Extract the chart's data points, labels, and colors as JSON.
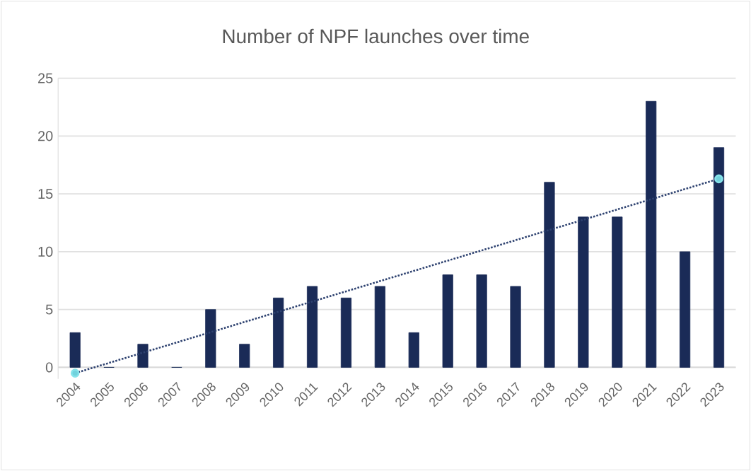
{
  "chart_data": {
    "type": "bar",
    "title": "Number of NPF launches over time",
    "categories": [
      "2004",
      "2005",
      "2006",
      "2007",
      "2008",
      "2009",
      "2010",
      "2011",
      "2012",
      "2013",
      "2014",
      "2015",
      "2016",
      "2017",
      "2018",
      "2019",
      "2020",
      "2021",
      "2022",
      "2023"
    ],
    "series": [
      {
        "color": "#1a2b57",
        "values": [
          3,
          0,
          2,
          0,
          5,
          2,
          6,
          7,
          6,
          7,
          3,
          8,
          8,
          7,
          16,
          13,
          13,
          23,
          10,
          19
        ]
      },
      {
        "type": "line",
        "color": "#2e4270",
        "values": [
          -0.5,
          null,
          null,
          null,
          null,
          null,
          null,
          null,
          null,
          null,
          null,
          null,
          null,
          null,
          null,
          null,
          null,
          null,
          null,
          16.3
        ],
        "line_style": "dotted",
        "marker": "circle"
      }
    ],
    "ylim": [
      -1,
      25
    ],
    "yticks": [
      0,
      5,
      10,
      15,
      20,
      25
    ],
    "grid": "y"
  }
}
